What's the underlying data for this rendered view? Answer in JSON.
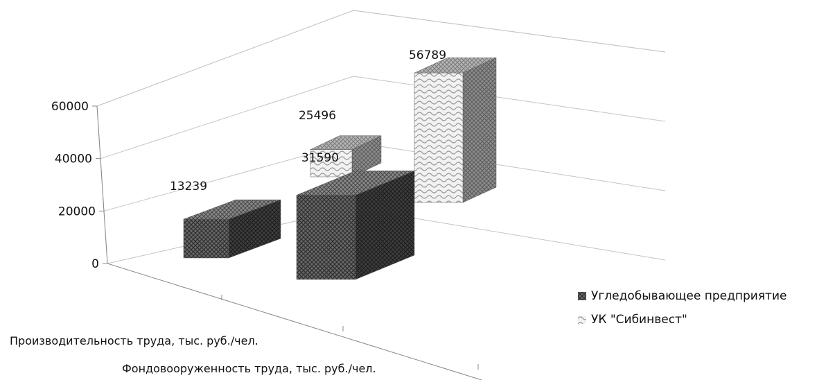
{
  "chart_data": {
    "type": "bar",
    "subtype": "3d-clustered-column",
    "categories": [
      "Производительность труда, тыс. руб./чел.",
      "Фондовооруженность труда, тыс. руб./чел."
    ],
    "series": [
      {
        "name": "Угледобывающее предприятие",
        "values": [
          13239,
          31590
        ]
      },
      {
        "name": "УК \"Сибинвест\"",
        "values": [
          25496,
          56789
        ]
      }
    ],
    "y_ticks": [
      "0",
      "20000",
      "40000",
      "60000"
    ],
    "ylim": [
      0,
      60000
    ],
    "grid": true,
    "legend": "right",
    "colors": {
      "series_1": "#555555",
      "series_2": "#d9d9d9",
      "grid": "#bfbfbf",
      "axis": "#888888"
    }
  }
}
